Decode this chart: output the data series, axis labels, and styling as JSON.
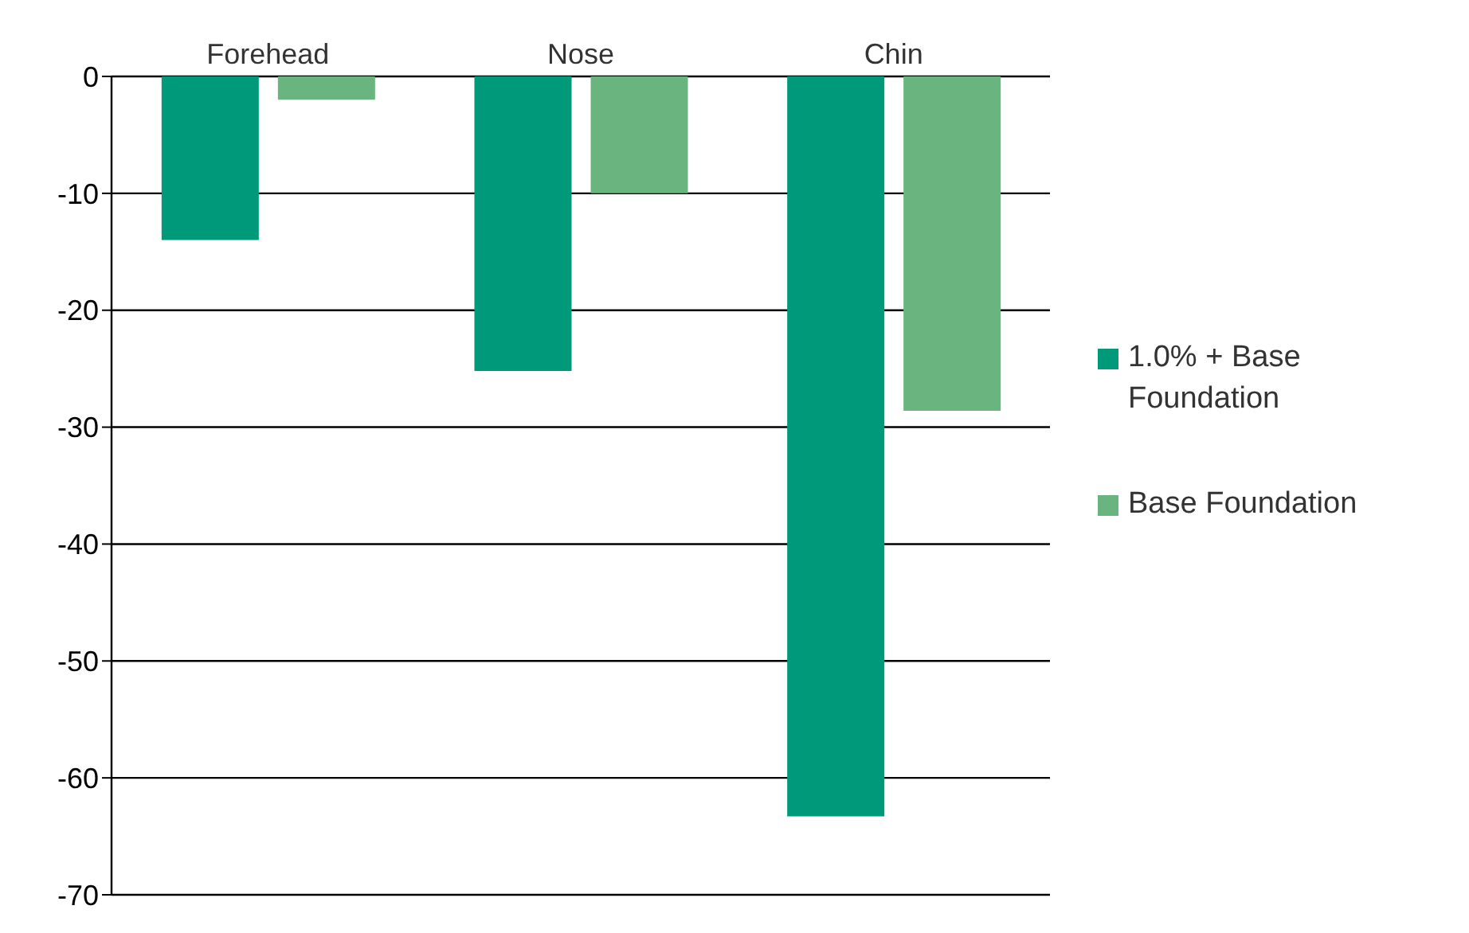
{
  "chart_data": {
    "type": "bar",
    "categories": [
      "Forehead",
      "Nose",
      "Chin"
    ],
    "series": [
      {
        "name": "1.0% + Base Foundation",
        "color": "#009a7a",
        "values": [
          -14,
          -25.2,
          -63.3
        ]
      },
      {
        "name": "Base Foundation",
        "color": "#6ab47f",
        "values": [
          -2,
          -10,
          -28.6
        ]
      }
    ],
    "ylim": [
      -70,
      0
    ],
    "yticks": [
      0,
      -10,
      -20,
      -30,
      -40,
      -50,
      -60,
      -70
    ],
    "grid": "y",
    "legend": "right"
  }
}
